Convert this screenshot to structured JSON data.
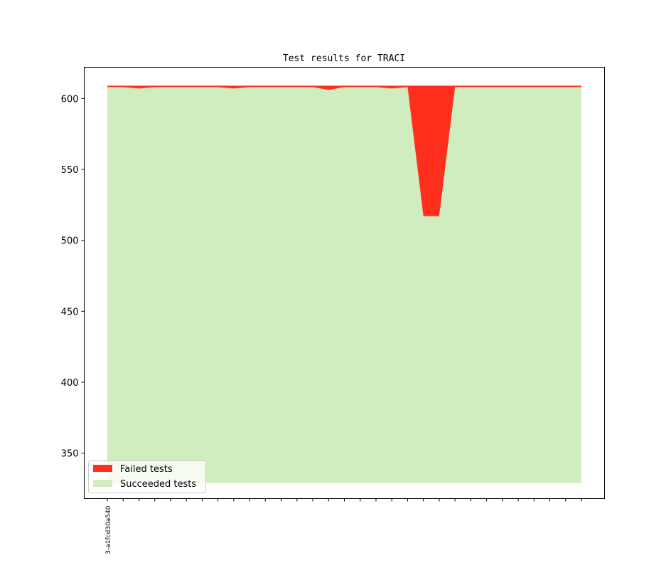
{
  "chart_data": {
    "type": "area",
    "title": "Test results for TRACI",
    "xlabel": "",
    "ylabel": "",
    "x_tick_labels": [
      "3-a1fcd30a540"
    ],
    "x_count": 31,
    "ylim": [
      318,
      622
    ],
    "yticks": [
      350,
      400,
      450,
      500,
      550,
      600
    ],
    "baseline": 329,
    "series": [
      {
        "name": "Succeeded tests",
        "color": "#cfedbf",
        "values": [
          608,
          608,
          607,
          608,
          608,
          608,
          608,
          608,
          607,
          608,
          608,
          608,
          608,
          608,
          606,
          608,
          608,
          608,
          607,
          608,
          517,
          517,
          608,
          608,
          608,
          608,
          608,
          608,
          608,
          608,
          608
        ]
      },
      {
        "name": "Failed tests",
        "color": "#ff2f1e",
        "values": [
          1,
          1,
          2,
          1,
          1,
          1,
          1,
          1,
          2,
          1,
          1,
          1,
          1,
          1,
          3,
          1,
          1,
          1,
          2,
          1,
          92,
          92,
          1,
          1,
          1,
          1,
          1,
          1,
          1,
          1,
          1
        ]
      }
    ],
    "legend": {
      "position": "bottom-left",
      "entries": [
        "Failed tests",
        "Succeeded tests"
      ]
    }
  }
}
